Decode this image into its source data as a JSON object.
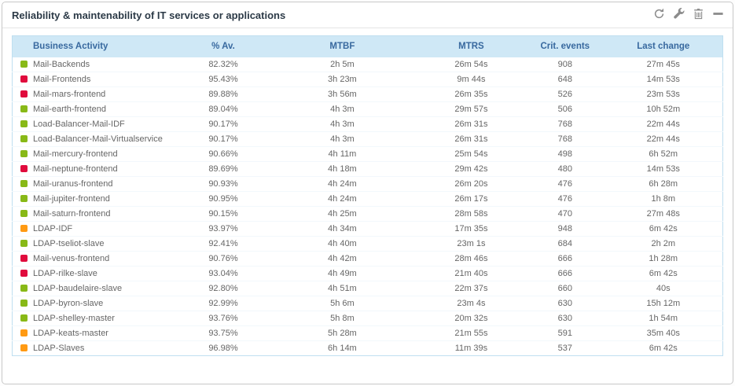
{
  "widget": {
    "title": "Reliability & maintenability of IT services or applications",
    "toolbar": {
      "icons": [
        "refresh-icon",
        "wrench-icon",
        "trash-icon",
        "collapse-icon"
      ]
    }
  },
  "colors": {
    "ok": "#88b917",
    "critical": "#e00b3d",
    "warning": "#ff9a13",
    "header_bg": "#cfe8f6",
    "header_text": "#38699f",
    "table_border": "#bfdff0"
  },
  "table": {
    "columns": [
      "Business Activity",
      "% Av.",
      "MTBF",
      "MTRS",
      "Crit. events",
      "Last change"
    ],
    "rows": [
      {
        "status": "ok",
        "name": "Mail-Backends",
        "av": "82.32%",
        "mtbf": "2h 5m",
        "mtrs": "26m 54s",
        "crit": "908",
        "last": "27m 45s"
      },
      {
        "status": "critical",
        "name": "Mail-Frontends",
        "av": "95.43%",
        "mtbf": "3h 23m",
        "mtrs": "9m 44s",
        "crit": "648",
        "last": "14m 53s"
      },
      {
        "status": "critical",
        "name": "Mail-mars-frontend",
        "av": "89.88%",
        "mtbf": "3h 56m",
        "mtrs": "26m 35s",
        "crit": "526",
        "last": "23m 53s"
      },
      {
        "status": "ok",
        "name": "Mail-earth-frontend",
        "av": "89.04%",
        "mtbf": "4h 3m",
        "mtrs": "29m 57s",
        "crit": "506",
        "last": "10h 52m"
      },
      {
        "status": "ok",
        "name": "Load-Balancer-Mail-IDF",
        "av": "90.17%",
        "mtbf": "4h 3m",
        "mtrs": "26m 31s",
        "crit": "768",
        "last": "22m 44s"
      },
      {
        "status": "ok",
        "name": "Load-Balancer-Mail-Virtualservice",
        "av": "90.17%",
        "mtbf": "4h 3m",
        "mtrs": "26m 31s",
        "crit": "768",
        "last": "22m 44s"
      },
      {
        "status": "ok",
        "name": "Mail-mercury-frontend",
        "av": "90.66%",
        "mtbf": "4h 11m",
        "mtrs": "25m 54s",
        "crit": "498",
        "last": "6h 52m"
      },
      {
        "status": "critical",
        "name": "Mail-neptune-frontend",
        "av": "89.69%",
        "mtbf": "4h 18m",
        "mtrs": "29m 42s",
        "crit": "480",
        "last": "14m 53s"
      },
      {
        "status": "ok",
        "name": "Mail-uranus-frontend",
        "av": "90.93%",
        "mtbf": "4h 24m",
        "mtrs": "26m 20s",
        "crit": "476",
        "last": "6h 28m"
      },
      {
        "status": "ok",
        "name": "Mail-jupiter-frontend",
        "av": "90.95%",
        "mtbf": "4h 24m",
        "mtrs": "26m 17s",
        "crit": "476",
        "last": "1h 8m"
      },
      {
        "status": "ok",
        "name": "Mail-saturn-frontend",
        "av": "90.15%",
        "mtbf": "4h 25m",
        "mtrs": "28m 58s",
        "crit": "470",
        "last": "27m 48s"
      },
      {
        "status": "warning",
        "name": "LDAP-IDF",
        "av": "93.97%",
        "mtbf": "4h 34m",
        "mtrs": "17m 35s",
        "crit": "948",
        "last": "6m 42s"
      },
      {
        "status": "ok",
        "name": "LDAP-tseliot-slave",
        "av": "92.41%",
        "mtbf": "4h 40m",
        "mtrs": "23m 1s",
        "crit": "684",
        "last": "2h 2m"
      },
      {
        "status": "critical",
        "name": "Mail-venus-frontend",
        "av": "90.76%",
        "mtbf": "4h 42m",
        "mtrs": "28m 46s",
        "crit": "666",
        "last": "1h 28m"
      },
      {
        "status": "critical",
        "name": "LDAP-rilke-slave",
        "av": "93.04%",
        "mtbf": "4h 49m",
        "mtrs": "21m 40s",
        "crit": "666",
        "last": "6m 42s"
      },
      {
        "status": "ok",
        "name": "LDAP-baudelaire-slave",
        "av": "92.80%",
        "mtbf": "4h 51m",
        "mtrs": "22m 37s",
        "crit": "660",
        "last": "40s"
      },
      {
        "status": "ok",
        "name": "LDAP-byron-slave",
        "av": "92.99%",
        "mtbf": "5h 6m",
        "mtrs": "23m 4s",
        "crit": "630",
        "last": "15h 12m"
      },
      {
        "status": "ok",
        "name": "LDAP-shelley-master",
        "av": "93.76%",
        "mtbf": "5h 8m",
        "mtrs": "20m 32s",
        "crit": "630",
        "last": "1h 54m"
      },
      {
        "status": "warning",
        "name": "LDAP-keats-master",
        "av": "93.75%",
        "mtbf": "5h 28m",
        "mtrs": "21m 55s",
        "crit": "591",
        "last": "35m 40s"
      },
      {
        "status": "warning",
        "name": "LDAP-Slaves",
        "av": "96.98%",
        "mtbf": "6h 14m",
        "mtrs": "11m 39s",
        "crit": "537",
        "last": "6m 42s"
      }
    ]
  }
}
